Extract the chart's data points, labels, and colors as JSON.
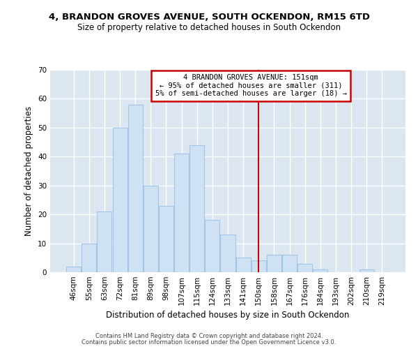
{
  "title": "4, BRANDON GROVES AVENUE, SOUTH OCKENDON, RM15 6TD",
  "subtitle": "Size of property relative to detached houses in South Ockendon",
  "xlabel": "Distribution of detached houses by size in South Ockendon",
  "ylabel": "Number of detached properties",
  "bar_labels": [
    "46sqm",
    "55sqm",
    "63sqm",
    "72sqm",
    "81sqm",
    "89sqm",
    "98sqm",
    "107sqm",
    "115sqm",
    "124sqm",
    "133sqm",
    "141sqm",
    "150sqm",
    "158sqm",
    "167sqm",
    "176sqm",
    "184sqm",
    "193sqm",
    "202sqm",
    "210sqm",
    "219sqm"
  ],
  "bar_heights": [
    2,
    10,
    21,
    50,
    58,
    30,
    23,
    41,
    44,
    18,
    13,
    5,
    4,
    6,
    6,
    3,
    1,
    0,
    0,
    1,
    0
  ],
  "bar_color": "#cfe2f3",
  "bar_edge_color": "#9fc5e8",
  "vline_x_index": 12,
  "vline_color": "#cc0000",
  "annotation_line1": "4 BRANDON GROVES AVENUE: 151sqm",
  "annotation_line2": "← 95% of detached houses are smaller (311)",
  "annotation_line3": "5% of semi-detached houses are larger (18) →",
  "annotation_box_edge": "#cc0000",
  "ylim": [
    0,
    70
  ],
  "yticks": [
    0,
    10,
    20,
    30,
    40,
    50,
    60,
    70
  ],
  "footer1": "Contains HM Land Registry data © Crown copyright and database right 2024.",
  "footer2": "Contains public sector information licensed under the Open Government Licence v3.0.",
  "bg_color": "#ffffff",
  "grid_color": "#dce6f1",
  "plot_bg_color": "#dce6f1",
  "title_fontsize": 9.5,
  "subtitle_fontsize": 8.5,
  "xlabel_fontsize": 8.5,
  "ylabel_fontsize": 8.5,
  "tick_fontsize": 7.5,
  "annot_fontsize": 7.5,
  "footer_fontsize": 6.0
}
